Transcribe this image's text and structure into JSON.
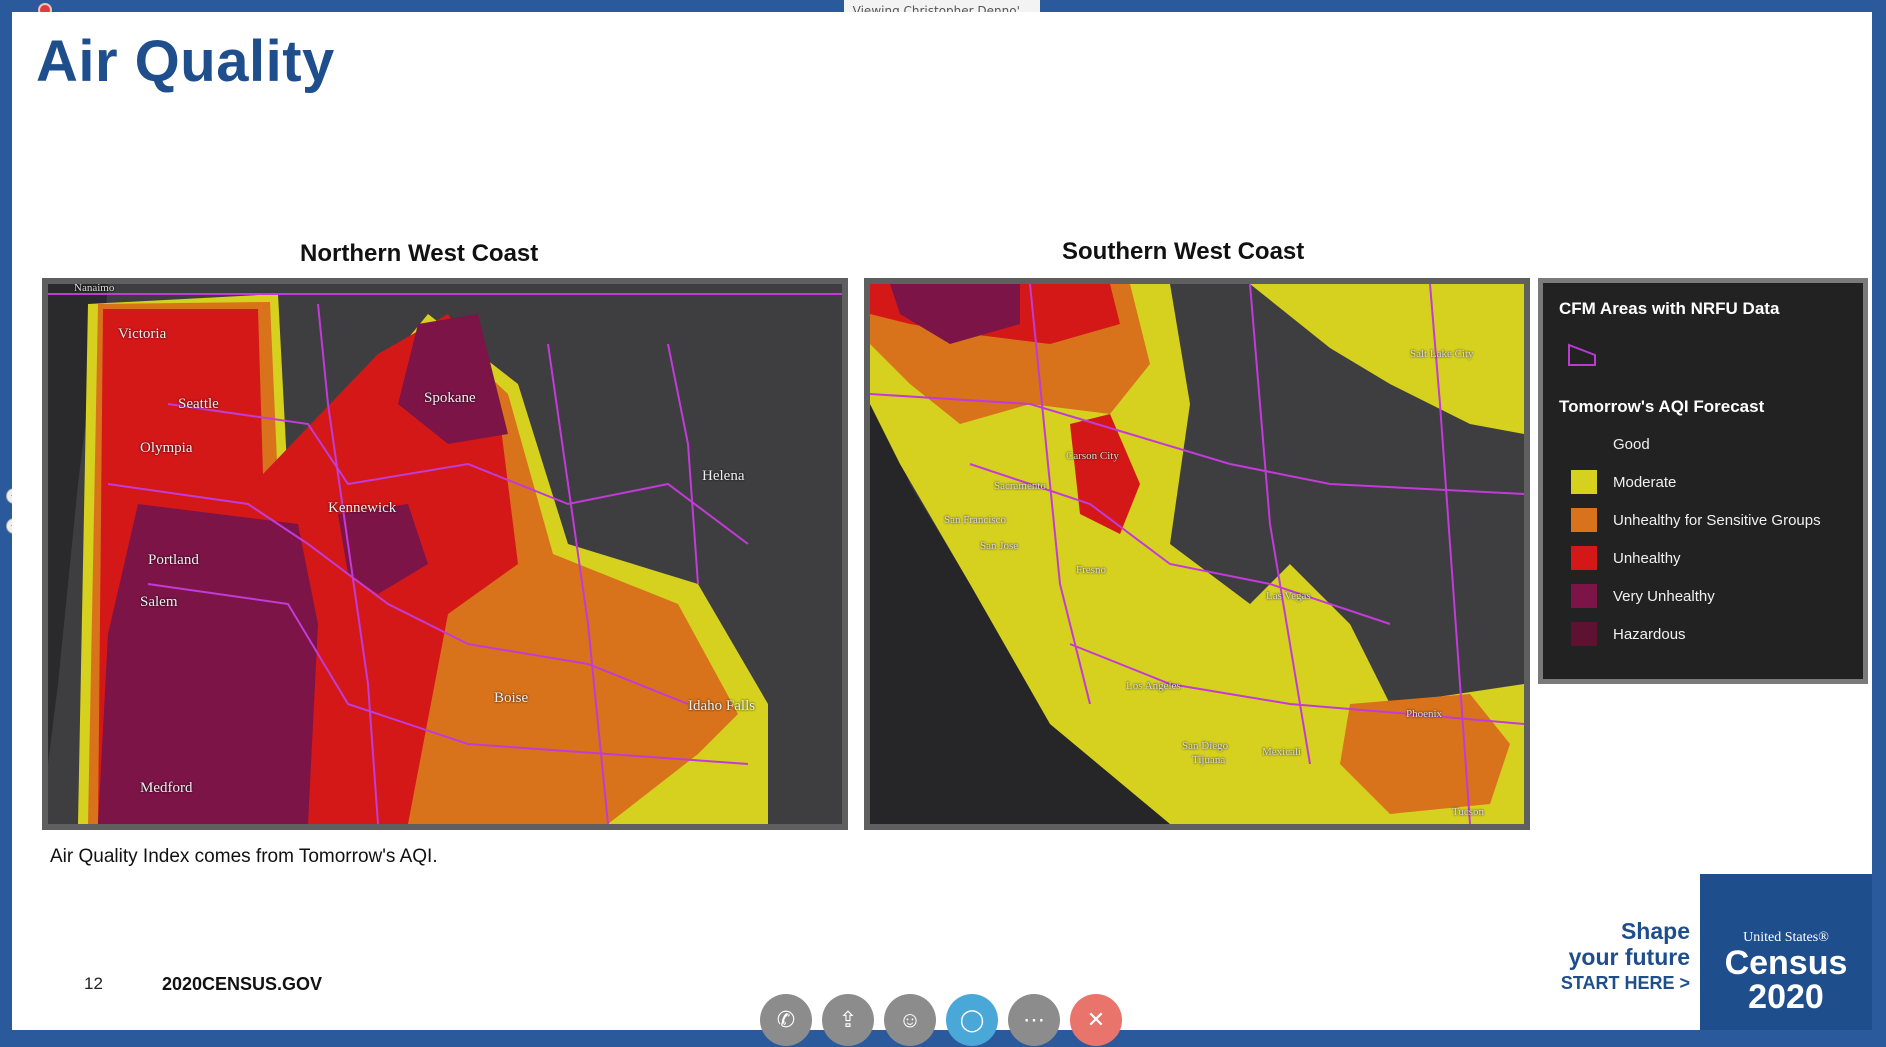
{
  "window": {
    "viewing_label": "Viewing Christopher Denno'..."
  },
  "slide": {
    "title": "Air Quality",
    "caption": "Air Quality Index comes from Tomorrow's AQI.",
    "page_number": "12",
    "site": "2020CENSUS.GOV"
  },
  "maps": {
    "north": {
      "heading": "Northern West Coast",
      "cities": [
        "Nanaimo",
        "Victoria",
        "Seattle",
        "Olympia",
        "Spokane",
        "Kennewick",
        "Helena",
        "Portland",
        "Salem",
        "Boise",
        "Idaho Falls",
        "Medford"
      ]
    },
    "south": {
      "heading": "Southern West Coast",
      "cities": [
        "Salt Lake City",
        "Carson City",
        "Sacramento",
        "San Francisco",
        "San Jose",
        "Fresno",
        "Las Vegas",
        "Los Angeles",
        "San Diego",
        "Tijuana",
        "Mexicali",
        "Phoenix",
        "Tucson"
      ]
    }
  },
  "legend": {
    "cfm_title": "CFM Areas with NRFU Data",
    "aqi_title": "Tomorrow's AQI Forecast",
    "items": [
      {
        "label": "Good",
        "color": "#222222"
      },
      {
        "label": "Moderate",
        "color": "#d6d11f"
      },
      {
        "label": "Unhealthy for Sensitive Groups",
        "color": "#d8731b"
      },
      {
        "label": "Unhealthy",
        "color": "#d41818"
      },
      {
        "label": "Very Unhealthy",
        "color": "#7c1448"
      },
      {
        "label": "Hazardous",
        "color": "#5c1230"
      }
    ]
  },
  "branding": {
    "shape_line1": "Shape",
    "shape_line2": "your future",
    "start_here": "START HERE >",
    "us_label": "United States®",
    "census": "Census",
    "year": "2020"
  },
  "controls": [
    "phone-icon",
    "share-icon",
    "participants-icon",
    "chat-icon",
    "more-icon",
    "end-call-icon"
  ]
}
